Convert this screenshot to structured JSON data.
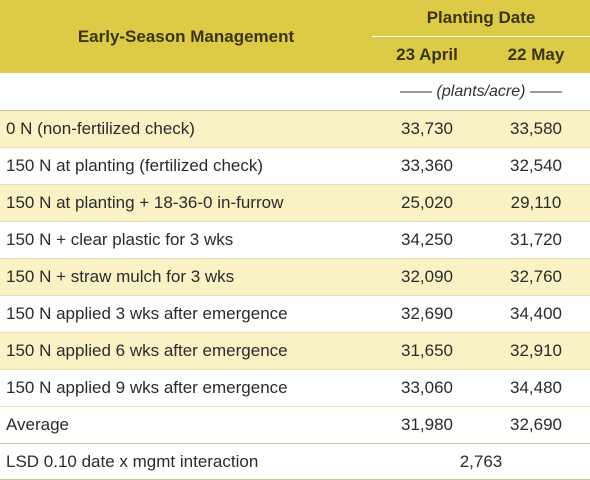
{
  "header": {
    "management_label": "Early-Season Management",
    "planting_date_label": "Planting Date",
    "dates": [
      "23 April",
      "22 May"
    ]
  },
  "units_label": "—— (plants/acre) ——",
  "rows": [
    {
      "label": "0 N (non-fertilized check)",
      "april": "33,730",
      "may": "33,580"
    },
    {
      "label": "150 N at planting (fertilized check)",
      "april": "33,360",
      "may": "32,540"
    },
    {
      "label": "150 N at planting + 18-36-0 in-furrow",
      "april": "25,020",
      "may": "29,110"
    },
    {
      "label": "150 N + clear plastic for 3 wks",
      "april": "34,250",
      "may": "31,720"
    },
    {
      "label": "150 N + straw mulch for 3 wks",
      "april": "32,090",
      "may": "32,760"
    },
    {
      "label": "150 N applied 3 wks after emergence",
      "april": "32,690",
      "may": "34,400"
    },
    {
      "label": "150 N applied 6 wks after emergence",
      "april": "31,650",
      "may": "32,910"
    },
    {
      "label": "150 N applied 9 wks after emergence",
      "april": "33,060",
      "may": "34,480"
    }
  ],
  "average": {
    "label": "Average",
    "april": "31,980",
    "may": "32,690"
  },
  "lsd": {
    "label": "LSD 0.10 date x mgmt interaction",
    "value": "2,763"
  },
  "colors": {
    "header_bg": "#ddcb47",
    "shaded_row_bg": "#f8f2c5",
    "plain_row_bg": "#ffffff"
  }
}
